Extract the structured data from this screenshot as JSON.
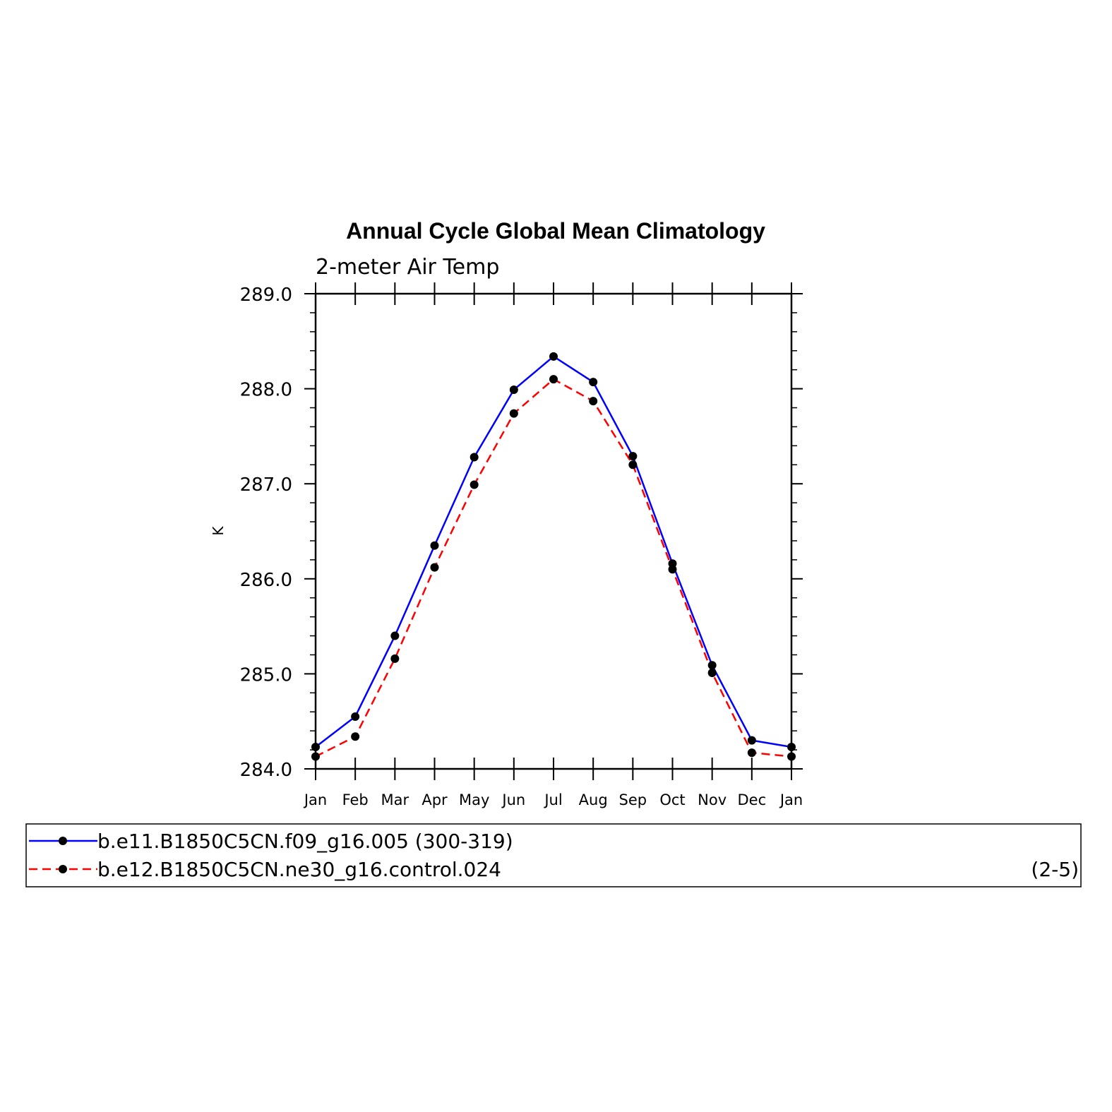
{
  "chart_data": {
    "type": "line",
    "title": "Annual Cycle Global Mean Climatology",
    "subtitle": "2-meter Air Temp",
    "xlabel": "",
    "ylabel": "K",
    "categories": [
      "Jan",
      "Feb",
      "Mar",
      "Apr",
      "May",
      "Jun",
      "Jul",
      "Aug",
      "Sep",
      "Oct",
      "Nov",
      "Dec",
      "Jan"
    ],
    "ylim": [
      284.0,
      289.0
    ],
    "yticks": [
      "284.0",
      "285.0",
      "286.0",
      "287.0",
      "288.0",
      "289.0"
    ],
    "series": [
      {
        "name": "b.e11.B1850C5CN.f09_g16.005 (300-319)",
        "color": "#0000ff",
        "line_style": "solid",
        "marker": "filled-circle",
        "values": [
          284.23,
          284.55,
          285.4,
          286.35,
          287.28,
          287.99,
          288.34,
          288.07,
          287.29,
          286.16,
          285.09,
          284.3,
          284.23
        ]
      },
      {
        "name": "b.e12.B1850C5CN.ne30_g16.control.024",
        "color": "#ff0000",
        "line_style": "dashed",
        "marker": "filled-circle",
        "values": [
          284.13,
          284.34,
          285.16,
          286.12,
          286.99,
          287.74,
          288.1,
          287.87,
          287.2,
          286.1,
          285.01,
          284.17,
          284.13
        ]
      }
    ],
    "legend_position": "bottom",
    "grid": false,
    "annotation": "(2-5)"
  }
}
